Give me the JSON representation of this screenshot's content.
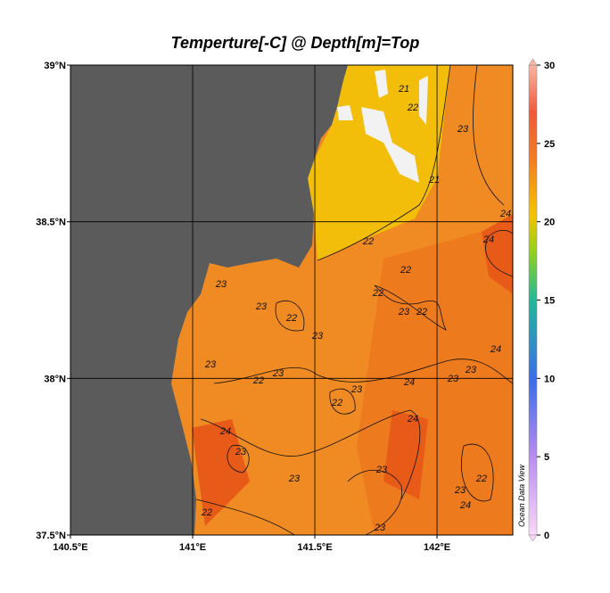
{
  "title": "Temperture[-C] @ Depth[m]=Top",
  "map": {
    "xlim": [
      140.5,
      142.31
    ],
    "ylim": [
      37.5,
      39
    ],
    "xticks": [
      {
        "value": 140.5,
        "label": "140.5°E"
      },
      {
        "value": 141,
        "label": "141°E"
      },
      {
        "value": 141.5,
        "label": "141.5°E"
      },
      {
        "value": 142,
        "label": "142°E"
      }
    ],
    "yticks": [
      {
        "value": 37.5,
        "label": "37.5°N"
      },
      {
        "value": 38,
        "label": "38°N"
      },
      {
        "value": 38.5,
        "label": "38.5°N"
      },
      {
        "value": 39,
        "label": "39°N"
      }
    ],
    "grid": true
  },
  "colorbar": {
    "lim": [
      0,
      30
    ],
    "ticks": [
      0,
      5,
      10,
      15,
      20,
      25,
      30
    ]
  },
  "contour_labels": [
    21,
    22,
    23,
    21,
    24,
    22,
    24,
    22,
    22,
    23,
    23,
    22,
    23,
    22,
    23,
    23,
    24,
    22,
    23,
    22,
    23,
    24,
    23,
    23,
    24,
    23,
    24,
    23,
    23,
    22,
    22,
    23,
    23,
    24
  ],
  "credit": "Ocean Data View"
}
